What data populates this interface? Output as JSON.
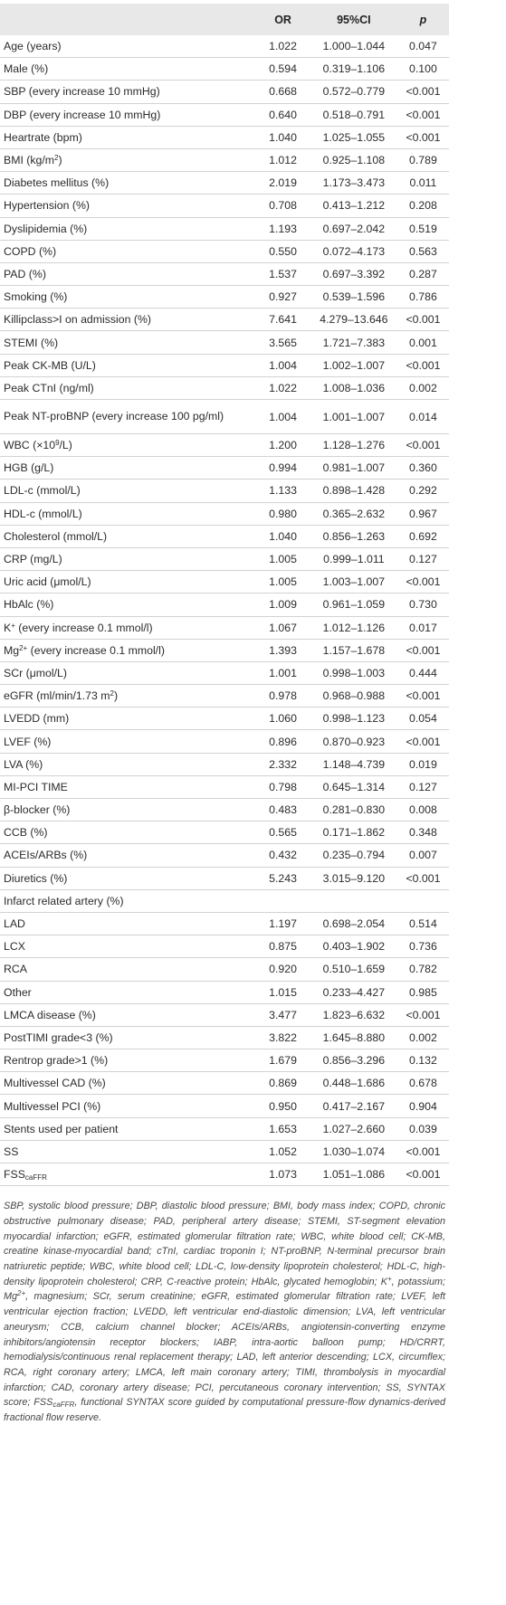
{
  "header": {
    "variable": "",
    "or": "OR",
    "ci": "95%CI",
    "p": "p"
  },
  "rows": [
    {
      "var": "Age (years)",
      "or": "1.022",
      "ci": "1.000–1.044",
      "p": "0.047"
    },
    {
      "var": "Male (%)",
      "or": "0.594",
      "ci": "0.319–1.106",
      "p": "0.100"
    },
    {
      "var": "SBP (every increase 10 mmHg)",
      "or": "0.668",
      "ci": "0.572–0.779",
      "p": "<0.001"
    },
    {
      "var": "DBP (every increase 10 mmHg)",
      "or": "0.640",
      "ci": "0.518–0.791",
      "p": "<0.001"
    },
    {
      "var": "Heartrate (bpm)",
      "or": "1.040",
      "ci": "1.025–1.055",
      "p": "<0.001"
    },
    {
      "var": "BMI (kg/m",
      "sup": "2",
      "after": ")",
      "or": "1.012",
      "ci": "0.925–1.108",
      "p": "0.789"
    },
    {
      "var": "Diabetes mellitus (%)",
      "or": "2.019",
      "ci": "1.173–3.473",
      "p": "0.011"
    },
    {
      "var": "Hypertension (%)",
      "or": "0.708",
      "ci": "0.413–1.212",
      "p": "0.208"
    },
    {
      "var": "Dyslipidemia (%)",
      "or": "1.193",
      "ci": "0.697–2.042",
      "p": "0.519"
    },
    {
      "var": "COPD (%)",
      "or": "0.550",
      "ci": "0.072–4.173",
      "p": "0.563"
    },
    {
      "var": "PAD (%)",
      "or": "1.537",
      "ci": "0.697–3.392",
      "p": "0.287"
    },
    {
      "var": "Smoking (%)",
      "or": "0.927",
      "ci": "0.539–1.596",
      "p": "0.786"
    },
    {
      "var": "Killipclass>I on admission (%)",
      "or": "7.641",
      "ci": "4.279–13.646",
      "p": "<0.001"
    },
    {
      "var": "STEMI (%)",
      "or": "3.565",
      "ci": "1.721–7.383",
      "p": "0.001"
    },
    {
      "var": "Peak CK-MB (U/L)",
      "or": "1.004",
      "ci": "1.002–1.007",
      "p": "<0.001"
    },
    {
      "var": "Peak CTnI (ng/ml)",
      "or": "1.022",
      "ci": "1.008–1.036",
      "p": "0.002"
    },
    {
      "var": "Peak NT-proBNP (every increase 100 pg/ml)",
      "or": "1.004",
      "ci": "1.001–1.007",
      "p": "0.014",
      "tall": true
    },
    {
      "var": "WBC (×10",
      "sup": "9",
      "after": "/L)",
      "or": "1.200",
      "ci": "1.128–1.276",
      "p": "<0.001"
    },
    {
      "var": "HGB (g/L)",
      "or": "0.994",
      "ci": "0.981–1.007",
      "p": "0.360"
    },
    {
      "var": "LDL-c (mmol/L)",
      "or": "1.133",
      "ci": "0.898–1.428",
      "p": "0.292"
    },
    {
      "var": "HDL-c (mmol/L)",
      "or": "0.980",
      "ci": "0.365–2.632",
      "p": "0.967"
    },
    {
      "var": "Cholesterol (mmol/L)",
      "or": "1.040",
      "ci": "0.856–1.263",
      "p": "0.692"
    },
    {
      "var": "CRP (mg/L)",
      "or": "1.005",
      "ci": "0.999–1.011",
      "p": "0.127"
    },
    {
      "var": "Uric acid (μmol/L)",
      "or": "1.005",
      "ci": "1.003–1.007",
      "p": "<0.001"
    },
    {
      "var": "HbAlc (%)",
      "or": "1.009",
      "ci": "0.961–1.059",
      "p": "0.730"
    },
    {
      "var": "K",
      "sup": "+",
      "after": " (every increase 0.1 mmol/l)",
      "or": "1.067",
      "ci": "1.012–1.126",
      "p": "0.017"
    },
    {
      "var": "Mg",
      "sup": "2+",
      "after": " (every increase 0.1 mmol/l)",
      "or": "1.393",
      "ci": "1.157–1.678",
      "p": "<0.001"
    },
    {
      "var": "SCr (μmol/L)",
      "or": "1.001",
      "ci": "0.998–1.003",
      "p": "0.444"
    },
    {
      "var": "eGFR (ml/min/1.73 m",
      "sup": "2",
      "after": ")",
      "or": "0.978",
      "ci": "0.968–0.988",
      "p": "<0.001"
    },
    {
      "var": "LVEDD (mm)",
      "or": "1.060",
      "ci": "0.998–1.123",
      "p": "0.054"
    },
    {
      "var": "LVEF (%)",
      "or": "0.896",
      "ci": "0.870–0.923",
      "p": "<0.001"
    },
    {
      "var": "LVA (%)",
      "or": "2.332",
      "ci": "1.148–4.739",
      "p": "0.019"
    },
    {
      "var": "MI-PCI TIME",
      "or": "0.798",
      "ci": "0.645–1.314",
      "p": "0.127"
    },
    {
      "var": "β-blocker (%)",
      "or": "0.483",
      "ci": "0.281–0.830",
      "p": "0.008"
    },
    {
      "var": "CCB (%)",
      "or": "0.565",
      "ci": "0.171–1.862",
      "p": "0.348"
    },
    {
      "var": "ACEIs/ARBs (%)",
      "or": "0.432",
      "ci": "0.235–0.794",
      "p": "0.007"
    },
    {
      "var": "Diuretics (%)",
      "or": "5.243",
      "ci": "3.015–9.120",
      "p": "<0.001"
    },
    {
      "var": "Infarct related artery (%)",
      "or": "",
      "ci": "",
      "p": ""
    },
    {
      "var": "LAD",
      "or": "1.197",
      "ci": "0.698–2.054",
      "p": "0.514"
    },
    {
      "var": "LCX",
      "or": "0.875",
      "ci": "0.403–1.902",
      "p": "0.736"
    },
    {
      "var": "RCA",
      "or": "0.920",
      "ci": "0.510–1.659",
      "p": "0.782"
    },
    {
      "var": "Other",
      "or": "1.015",
      "ci": "0.233–4.427",
      "p": "0.985"
    },
    {
      "var": "LMCA disease (%)",
      "or": "3.477",
      "ci": "1.823–6.632",
      "p": "<0.001"
    },
    {
      "var": "PostTIMI grade<3 (%)",
      "or": "3.822",
      "ci": "1.645–8.880",
      "p": "0.002"
    },
    {
      "var": "Rentrop grade>1 (%)",
      "or": "1.679",
      "ci": "0.856–3.296",
      "p": "0.132"
    },
    {
      "var": "Multivessel CAD (%)",
      "or": "0.869",
      "ci": "0.448–1.686",
      "p": "0.678"
    },
    {
      "var": "Multivessel PCI (%)",
      "or": "0.950",
      "ci": "0.417–2.167",
      "p": "0.904"
    },
    {
      "var": "Stents used per patient",
      "or": "1.653",
      "ci": "1.027–2.660",
      "p": "0.039"
    },
    {
      "var": "SS",
      "or": "1.052",
      "ci": "1.030–1.074",
      "p": "<0.001"
    },
    {
      "var": "FSS",
      "sub": "caFFR",
      "or": "1.073",
      "ci": "1.051–1.086",
      "p": "<0.001"
    }
  ],
  "footnote": {
    "part1": "SBP, systolic blood pressure; DBP, diastolic blood pressure; BMI, body mass index; COPD, chronic obstructive pulmonary disease; PAD, peripheral artery disease; STEMI, ST-segment elevation myocardial infarction; eGFR, estimated glomerular filtration rate; WBC, white blood cell; CK-MB, creatine kinase-myocardial band; cTnI, cardiac troponin I; NT-proBNP, N-terminal precursor brain natriuretic peptide; WBC, white blood cell; LDL-C, low-density lipoprotein cholesterol; HDL-C, high-density lipoprotein cholesterol; CRP, C-reactive protein; HbAlc, glycated hemoglobin; K",
    "sup1": "+",
    "part2": ", potassium; Mg",
    "sup2": "2+",
    "part3": ", magnesium; SCr, serum creatinine; eGFR, estimated glomerular filtration rate; LVEF, left ventricular ejection fraction; LVEDD, left ventricular end-diastolic dimension; LVA, left ventricular aneurysm; CCB, calcium channel blocker; ACEIs/ARBs, angiotensin-converting enzyme inhibitors/angiotensin receptor blockers; IABP, intra-aortic balloon pump; HD/CRRT, hemodialysis/continuous renal replacement therapy; LAD, left anterior descending; LCX, circumflex; RCA, right coronary artery; LMCA, left main coronary artery; TIMI, thrombolysis in myocardial infarction; CAD, coronary artery disease; PCI, percutaneous coronary intervention; SS, SYNTAX score; FSS",
    "sub1": "caFFR",
    "part4": ", functional SYNTAX score guided by computational pressure-flow dynamics-derived fractional flow reserve."
  }
}
